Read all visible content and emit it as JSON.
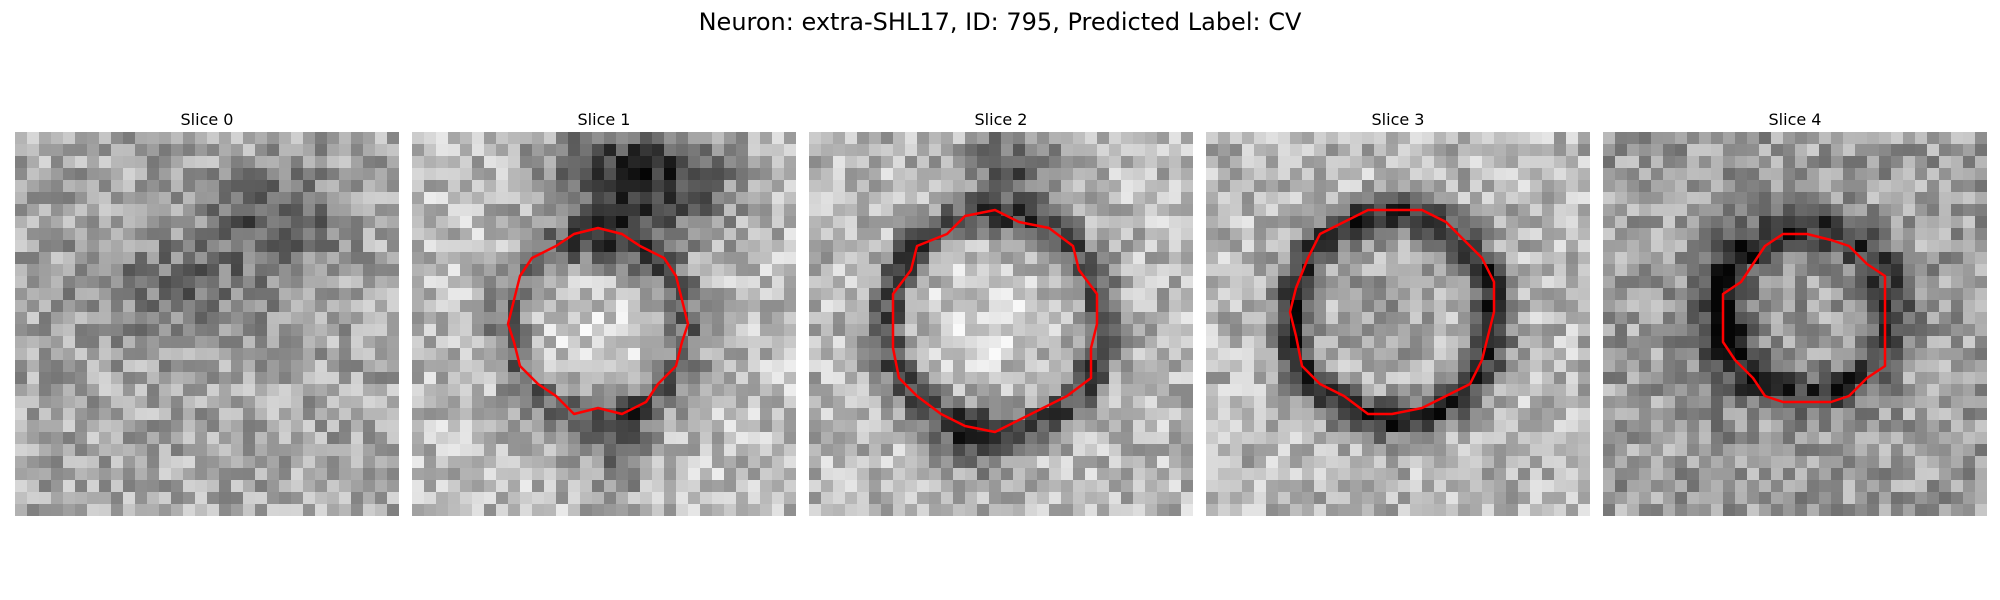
{
  "figure": {
    "title": "Neuron: extra-SHL17, ID: 795, Predicted Label: CV"
  },
  "colors": {
    "contour": "#ff0000",
    "background": "#ffffff",
    "image_colormap": "gray"
  },
  "panels": [
    {
      "title": "Slice 0",
      "has_contour": false
    },
    {
      "title": "Slice 1",
      "has_contour": true
    },
    {
      "title": "Slice 2",
      "has_contour": true
    },
    {
      "title": "Slice 3",
      "has_contour": true
    },
    {
      "title": "Slice 4",
      "has_contour": true
    }
  ]
}
